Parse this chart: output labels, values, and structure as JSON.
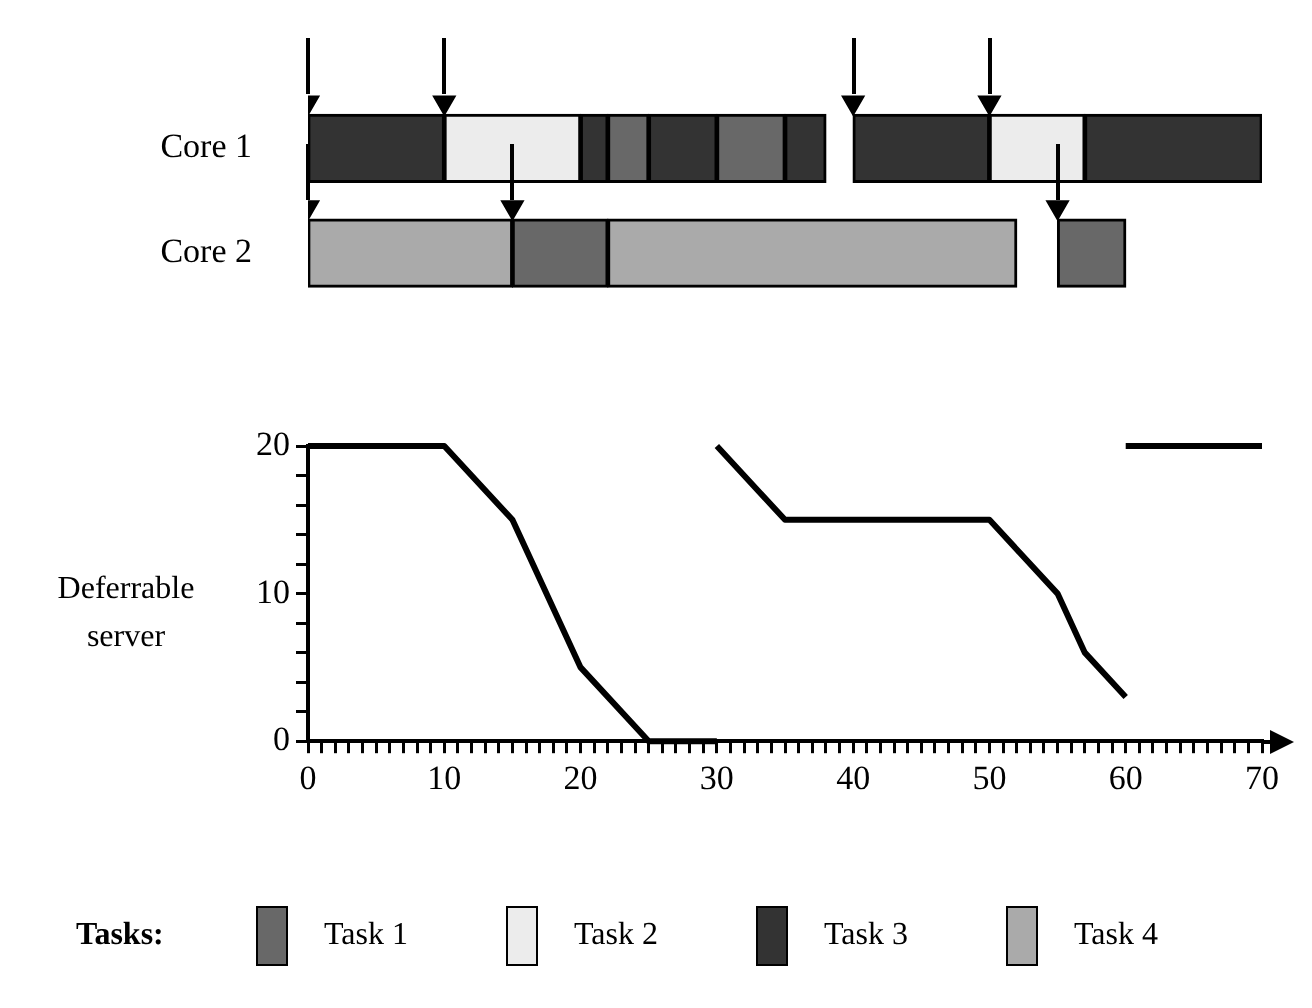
{
  "chart_data": [
    {
      "type": "bar",
      "orientation": "horizontal",
      "categories": [
        "Core 1",
        "Core 2"
      ],
      "xlim": [
        0,
        70
      ],
      "tick_labels": "y",
      "legend": "bottom",
      "legend_title": "Tasks:",
      "series": [
        {
          "name": "Task 1",
          "color": "#686868",
          "base": [
            22,
            15
          ],
          "values": [
            3,
            7
          ]
        },
        {
          "color": "#686868",
          "base": [
            30,
            55
          ],
          "values": [
            5,
            5
          ]
        },
        {
          "name": "Task 2",
          "color": "#ececec",
          "base": [
            10,
            null
          ],
          "values": [
            10,
            null
          ]
        },
        {
          "color": "#ececec",
          "base": [
            50,
            null
          ],
          "values": [
            7,
            null
          ]
        },
        {
          "name": "Task 3",
          "color": "#333333",
          "base": [
            0,
            null
          ],
          "values": [
            10,
            null
          ]
        },
        {
          "color": "#333333",
          "base": [
            20,
            null
          ],
          "values": [
            2,
            null
          ]
        },
        {
          "color": "#333333",
          "base": [
            25,
            null
          ],
          "values": [
            5,
            null
          ]
        },
        {
          "color": "#333333",
          "base": [
            35,
            null
          ],
          "values": [
            3,
            null
          ]
        },
        {
          "color": "#333333",
          "base": [
            40,
            null
          ],
          "values": [
            10,
            null
          ]
        },
        {
          "color": "#333333",
          "base": [
            57,
            null
          ],
          "values": [
            13,
            null
          ]
        },
        {
          "name": "Task 4",
          "color": "#aaaaaa",
          "base": [
            null,
            0
          ],
          "values": [
            null,
            15
          ]
        },
        {
          "color": "#aaaaaa",
          "base": [
            null,
            22
          ],
          "values": [
            null,
            30
          ]
        },
        {
          "type": "scatter",
          "marker": "triangle",
          "color": "#000000",
          "x": [
            "Core 1",
            "Core 1",
            "Core 1",
            "Core 1",
            "Core 2",
            "Core 2",
            "Core 2"
          ],
          "values": [
            0,
            10,
            40,
            50,
            0,
            15,
            55
          ]
        }
      ]
    },
    {
      "type": "line",
      "ylabel": "Deferrable server",
      "xlim": [
        0,
        70
      ],
      "ylim": [
        0,
        20
      ],
      "marker": "none",
      "line_style": "solid",
      "xticks": [
        0,
        {
          "value": 1,
          "label": null
        },
        {
          "value": 2,
          "label": null
        },
        {
          "value": 3,
          "label": null
        },
        {
          "value": 4,
          "label": null
        },
        {
          "value": 5,
          "label": null
        },
        {
          "value": 6,
          "label": null
        },
        {
          "value": 7,
          "label": null
        },
        {
          "value": 8,
          "label": null
        },
        {
          "value": 9,
          "label": null
        },
        10,
        {
          "value": 11,
          "label": null
        },
        {
          "value": 12,
          "label": null
        },
        {
          "value": 13,
          "label": null
        },
        {
          "value": 14,
          "label": null
        },
        {
          "value": 15,
          "label": null
        },
        {
          "value": 16,
          "label": null
        },
        {
          "value": 17,
          "label": null
        },
        {
          "value": 18,
          "label": null
        },
        {
          "value": 19,
          "label": null
        },
        20,
        {
          "value": 21,
          "label": null
        },
        {
          "value": 22,
          "label": null
        },
        {
          "value": 23,
          "label": null
        },
        {
          "value": 24,
          "label": null
        },
        {
          "value": 25,
          "label": null
        },
        {
          "value": 26,
          "label": null
        },
        {
          "value": 27,
          "label": null
        },
        {
          "value": 28,
          "label": null
        },
        {
          "value": 29,
          "label": null
        },
        30,
        {
          "value": 31,
          "label": null
        },
        {
          "value": 32,
          "label": null
        },
        {
          "value": 33,
          "label": null
        },
        {
          "value": 34,
          "label": null
        },
        {
          "value": 35,
          "label": null
        },
        {
          "value": 36,
          "label": null
        },
        {
          "value": 37,
          "label": null
        },
        {
          "value": 38,
          "label": null
        },
        {
          "value": 39,
          "label": null
        },
        40,
        {
          "value": 41,
          "label": null
        },
        {
          "value": 42,
          "label": null
        },
        {
          "value": 43,
          "label": null
        },
        {
          "value": 44,
          "label": null
        },
        {
          "value": 45,
          "label": null
        },
        {
          "value": 46,
          "label": null
        },
        {
          "value": 47,
          "label": null
        },
        {
          "value": 48,
          "label": null
        },
        {
          "value": 49,
          "label": null
        },
        50,
        {
          "value": 51,
          "label": null
        },
        {
          "value": 52,
          "label": null
        },
        {
          "value": 53,
          "label": null
        },
        {
          "value": 54,
          "label": null
        },
        {
          "value": 55,
          "label": null
        },
        {
          "value": 56,
          "label": null
        },
        {
          "value": 57,
          "label": null
        },
        {
          "value": 58,
          "label": null
        },
        {
          "value": 59,
          "label": null
        },
        60,
        {
          "value": 61,
          "label": null
        },
        {
          "value": 62,
          "label": null
        },
        {
          "value": 63,
          "label": null
        },
        {
          "value": 64,
          "label": null
        },
        {
          "value": 65,
          "label": null
        },
        {
          "value": 66,
          "label": null
        },
        {
          "value": 67,
          "label": null
        },
        {
          "value": 68,
          "label": null
        },
        {
          "value": 69,
          "label": null
        },
        70
      ],
      "yticks": [
        0,
        {
          "value": 2,
          "label": null
        },
        {
          "value": 4,
          "label": null
        },
        {
          "value": 6,
          "label": null
        },
        {
          "value": 8,
          "label": null
        },
        10,
        {
          "value": 12,
          "label": null
        },
        {
          "value": 14,
          "label": null
        },
        {
          "value": 16,
          "label": null
        },
        {
          "value": 18,
          "label": null
        },
        20
      ],
      "series": [
        {
          "color": "#000000",
          "x": [
            0,
            10,
            15,
            20,
            25,
            30
          ],
          "values": [
            20,
            20,
            15,
            5,
            0,
            0
          ]
        },
        {
          "color": "#000000",
          "x": [
            30,
            35,
            50,
            55,
            57,
            60
          ],
          "values": [
            20,
            15,
            15,
            10,
            6,
            3
          ]
        },
        {
          "color": "#000000",
          "x": [
            60,
            70
          ],
          "values": [
            20,
            20
          ]
        }
      ]
    }
  ]
}
